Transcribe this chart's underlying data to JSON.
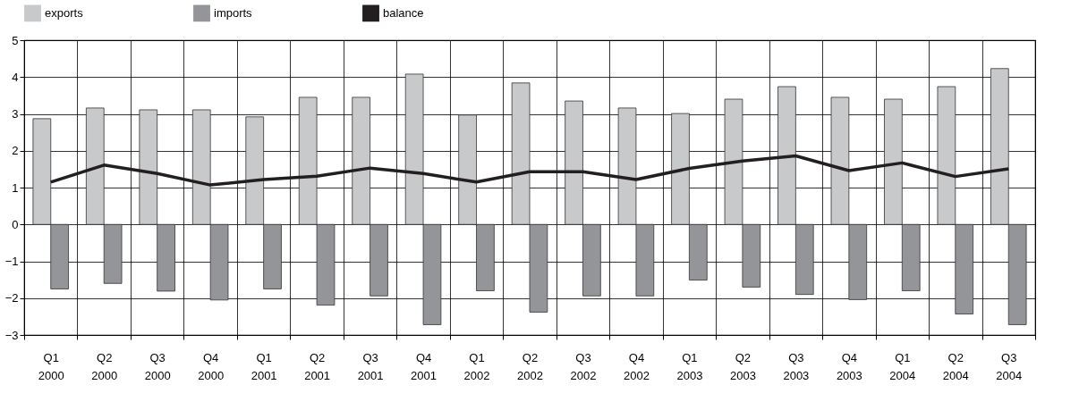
{
  "chart_data": {
    "type": "bar",
    "categories": [
      "Q1 2000",
      "Q2 2000",
      "Q3 2000",
      "Q4 2000",
      "Q1 2001",
      "Q2 2001",
      "Q3 2001",
      "Q4 2001",
      "Q1 2002",
      "Q2 2002",
      "Q3 2002",
      "Q4 2002",
      "Q1 2003",
      "Q2 2003",
      "Q3 2003",
      "Q4 2003",
      "Q1 2004",
      "Q2 2004",
      "Q3 2004"
    ],
    "series": [
      {
        "name": "exports",
        "color": "#c8c9cb",
        "values": [
          2.87,
          3.16,
          3.11,
          3.11,
          2.92,
          3.45,
          3.45,
          4.08,
          2.97,
          3.84,
          3.35,
          3.16,
          3.01,
          3.4,
          3.74,
          3.45,
          3.4,
          3.74,
          4.23
        ]
      },
      {
        "name": "imports",
        "color": "#939598",
        "values": [
          -1.75,
          -1.6,
          -1.81,
          -2.05,
          -1.75,
          -2.19,
          -1.94,
          -2.72,
          -1.8,
          -2.38,
          -1.94,
          -1.94,
          -1.51,
          -1.7,
          -1.9,
          -2.04,
          -1.8,
          -2.43,
          -2.72
        ]
      },
      {
        "name": "balance",
        "type": "line",
        "color": "#231f20",
        "values": [
          1.15,
          1.61,
          1.38,
          1.07,
          1.22,
          1.31,
          1.53,
          1.38,
          1.15,
          1.43,
          1.43,
          1.22,
          1.52,
          1.72,
          1.86,
          1.46,
          1.67,
          1.3,
          1.51
        ]
      }
    ],
    "ylim": [
      -3,
      5
    ],
    "yticks": [
      -3,
      -2,
      -1,
      0,
      1,
      2,
      3,
      4,
      5
    ],
    "grid": true,
    "legend": "top",
    "marker": "none",
    "line_style": "solid"
  }
}
